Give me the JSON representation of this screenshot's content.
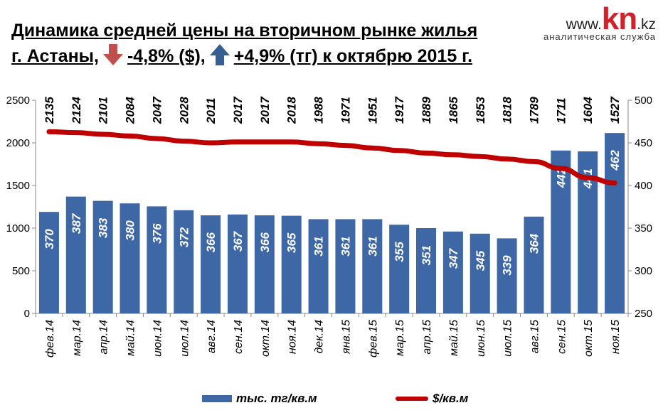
{
  "header": {
    "title_line1": "Динамика средней  цены на вторичном рынке жилья",
    "title_line2_city": "г. Астаны,",
    "title_line2_usd": "-4,8% ($),",
    "title_line2_kzt": "+4,9% (тг) к октябрю 2015 г."
  },
  "logo": {
    "prefix": "www.",
    "brand": "kn",
    "suffix": ".kz",
    "tagline": "аналитическая служба"
  },
  "colors": {
    "bar": "#3d67a5",
    "line": "#c00000",
    "arrow_down": "#c0504d",
    "arrow_up": "#365f91"
  },
  "chart_data": {
    "type": "bar",
    "categories": [
      "фев.14",
      "мар.14",
      "апр.14",
      "май.14",
      "июн.14",
      "июл.14",
      "авг.14",
      "сен.14",
      "окт.14",
      "ноя.14",
      "дек.14",
      "янв.15",
      "фев.15",
      "мар.15",
      "апр.15",
      "май.15",
      "июн.15",
      "июл.15",
      "авг.15",
      "сен.15",
      "окт.15",
      "ноя.15"
    ],
    "series": [
      {
        "name": "тыс. тг/кв.м",
        "type": "bar",
        "axis": "left",
        "values": [
          1190,
          1370,
          1320,
          1290,
          1255,
          1210,
          1150,
          1160,
          1150,
          1145,
          1105,
          1105,
          1105,
          1040,
          1000,
          960,
          935,
          880,
          1135,
          1910,
          1900,
          2115
        ],
        "labels": [
          "370",
          "387",
          "383",
          "380",
          "376",
          "372",
          "366",
          "367",
          "366",
          "365",
          "361",
          "361",
          "361",
          "355",
          "351",
          "347",
          "345",
          "339",
          "364",
          "442",
          "441",
          "462"
        ]
      },
      {
        "name": "$/кв.м",
        "type": "line",
        "axis": "right",
        "values": [
          2135,
          2124,
          2101,
          2084,
          2047,
          2028,
          2011,
          2017,
          2017,
          2018,
          1988,
          1971,
          1951,
          1917,
          1889,
          1865,
          1853,
          1818,
          1789,
          1711,
          1604,
          1527
        ],
        "line_values": [
          463,
          462,
          460,
          458,
          455,
          452,
          450,
          451,
          451,
          451,
          449,
          447,
          444,
          441,
          438,
          436,
          434,
          431,
          428,
          420,
          409,
          403
        ]
      }
    ],
    "ylim_left": [
      0,
      2500
    ],
    "yticks_left": [
      0,
      500,
      1000,
      1500,
      2000,
      2500
    ],
    "ylim_right": [
      250,
      500
    ],
    "yticks_right": [
      250,
      300,
      350,
      400,
      450,
      500
    ],
    "grid": false,
    "legend": "bottom"
  }
}
